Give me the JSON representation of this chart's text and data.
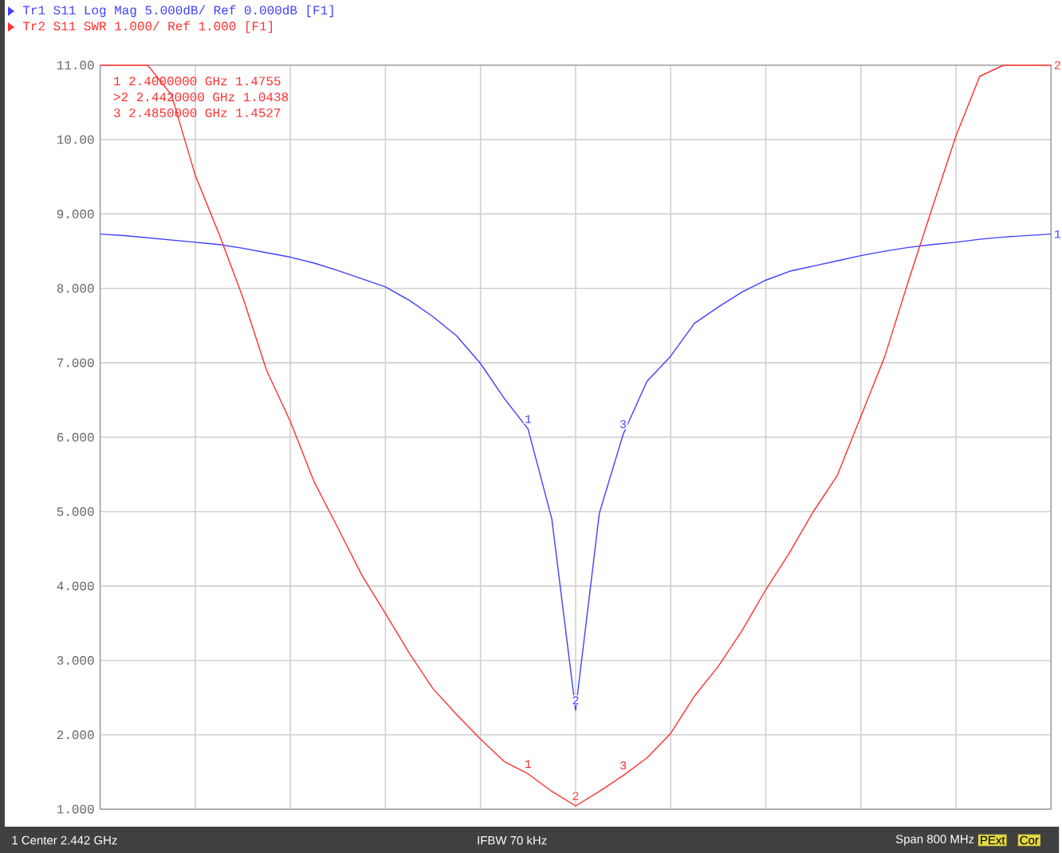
{
  "chart_data": {
    "type": "line",
    "categories": [
      null,
      null,
      null,
      null,
      null,
      null,
      null,
      null,
      null,
      null,
      null,
      null,
      null,
      null,
      null,
      null,
      null,
      null,
      null,
      null,
      null,
      null,
      null,
      null,
      null,
      null,
      null,
      null,
      null,
      null,
      null,
      null,
      null,
      null,
      null,
      null,
      null,
      null,
      null,
      null,
      null
    ],
    "ylim": [
      1,
      11
    ],
    "yticks": [
      {
        "value": 1,
        "label": "1.000"
      },
      {
        "value": 2,
        "label": "2.000"
      },
      {
        "value": 3,
        "label": "3.000"
      },
      {
        "value": 4,
        "label": "4.000"
      },
      {
        "value": 5,
        "label": "5.000"
      },
      {
        "value": 6,
        "label": "6.000"
      },
      {
        "value": 7,
        "label": "7.000"
      },
      {
        "value": 8,
        "label": "8.000"
      },
      {
        "value": 9,
        "label": "9.000"
      },
      {
        "value": 10,
        "label": "10.00"
      },
      {
        "value": 11,
        "label": "11.00"
      }
    ],
    "grid": true,
    "legend": "top left",
    "marker": "none",
    "line_style": "solid",
    "tick_labels": "y",
    "series": [
      {
        "name": "Tr1 S11 Log Mag 5.000dB/ Ref 0.000dB [F1]",
        "color": "#4040ff",
        "values": [
          8.73,
          8.71,
          8.68,
          8.65,
          8.62,
          8.59,
          8.54,
          8.48,
          8.42,
          8.34,
          8.24,
          8.13,
          8.02,
          7.84,
          7.62,
          7.36,
          6.99,
          6.52,
          6.11,
          4.9,
          2.33,
          4.98,
          6.04,
          6.75,
          7.09,
          7.53,
          7.75,
          7.95,
          8.11,
          8.23,
          8.3,
          8.37,
          8.44,
          8.5,
          8.55,
          8.59,
          8.62,
          8.66,
          8.69,
          8.71,
          8.73
        ]
      },
      {
        "name": "Tr2 S11 SWR 1.000/ Ref 1.000 [F1]",
        "color": "#ff3030",
        "values": [
          11,
          11,
          11,
          10.6,
          9.52,
          8.73,
          7.88,
          6.9,
          6.21,
          5.4,
          4.78,
          4.15,
          3.63,
          3.1,
          2.62,
          2.27,
          1.94,
          1.64,
          1.4755,
          1.24,
          1.0438,
          1.24,
          1.4527,
          1.69,
          2.02,
          2.52,
          2.92,
          3.4,
          3.95,
          4.45,
          5.0,
          5.48,
          6.28,
          7.08,
          8.1,
          9.08,
          10.05,
          10.85,
          11,
          11,
          11
        ]
      }
    ],
    "annotations": [
      "1 2.4000000 GHz 1.4755",
      ">2 2.4420000 GHz 1.0438",
      "3 2.4850000 GHz 1.4527",
      "1 Center 2.442 GHz",
      "IFBW 70 kHz",
      "Span 800 MHz",
      "PExt",
      "Cor",
      {
        "text": "1",
        "y": 1.4755
      },
      {
        "text": "2",
        "y": 1.0438
      },
      {
        "text": "3",
        "y": 1.4527
      },
      {
        "text": "1",
        "y": 6.11
      },
      {
        "text": "2",
        "y": 2.33
      },
      {
        "text": "3",
        "y": 6.04
      },
      {
        "text": "2",
        "y": 11
      },
      {
        "text": "1",
        "y": 8.73
      }
    ]
  }
}
